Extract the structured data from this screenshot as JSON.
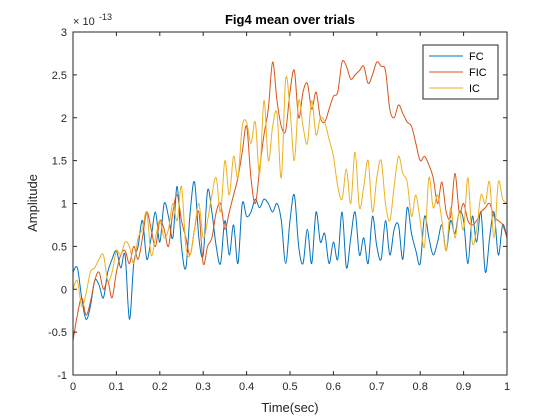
{
  "colors": {
    "axes": "#262626",
    "background": "#ffffff",
    "legend_border": "#262626"
  },
  "chart_data": {
    "type": "line",
    "title": "Fig4 mean over trials",
    "xlabel": "Time(sec)",
    "ylabel": "Amplitude",
    "xlim": [
      0,
      1
    ],
    "ylim": [
      -1,
      3
    ],
    "y_exponent_label": "× 10",
    "y_exponent": "-13",
    "x_ticks": [
      0,
      0.1,
      0.2,
      0.3,
      0.4,
      0.5,
      0.6,
      0.7,
      0.8,
      0.9,
      1
    ],
    "x_tick_labels": [
      "0",
      "0.1",
      "0.2",
      "0.3",
      "0.4",
      "0.5",
      "0.6",
      "0.7",
      "0.8",
      "0.9",
      "1"
    ],
    "y_ticks": [
      -1,
      -0.5,
      0,
      0.5,
      1,
      1.5,
      2,
      2.5,
      3
    ],
    "y_tick_labels": [
      "-1",
      "-0.5",
      "0",
      "0.5",
      "1",
      "1.5",
      "2",
      "2.5",
      "3"
    ],
    "grid": false,
    "legend_position": "top-right",
    "series": [
      {
        "name": "FC",
        "color": "#0072BD",
        "x": [
          0,
          0.01,
          0.02,
          0.03,
          0.04,
          0.05,
          0.06,
          0.07,
          0.08,
          0.09,
          0.1,
          0.11,
          0.12,
          0.13,
          0.14,
          0.15,
          0.16,
          0.17,
          0.18,
          0.19,
          0.2,
          0.21,
          0.22,
          0.23,
          0.24,
          0.25,
          0.26,
          0.27,
          0.28,
          0.29,
          0.3,
          0.31,
          0.32,
          0.33,
          0.34,
          0.35,
          0.36,
          0.37,
          0.38,
          0.39,
          0.4,
          0.41,
          0.42,
          0.43,
          0.44,
          0.45,
          0.46,
          0.47,
          0.48,
          0.49,
          0.5,
          0.51,
          0.52,
          0.53,
          0.54,
          0.55,
          0.56,
          0.57,
          0.58,
          0.59,
          0.6,
          0.61,
          0.62,
          0.63,
          0.64,
          0.65,
          0.66,
          0.67,
          0.68,
          0.69,
          0.7,
          0.71,
          0.72,
          0.73,
          0.74,
          0.75,
          0.76,
          0.77,
          0.78,
          0.79,
          0.8,
          0.81,
          0.82,
          0.83,
          0.84,
          0.85,
          0.86,
          0.87,
          0.88,
          0.89,
          0.9,
          0.91,
          0.92,
          0.93,
          0.94,
          0.95,
          0.96,
          0.97,
          0.98,
          0.99,
          1
        ],
        "values": [
          0.2,
          0.25,
          -0.1,
          -0.35,
          -0.2,
          0.1,
          0.05,
          -0.1,
          0.2,
          0.35,
          0.45,
          0.25,
          0.4,
          -0.35,
          0.3,
          0.5,
          0.8,
          0.35,
          0.6,
          0.9,
          0.55,
          1.0,
          0.85,
          0.6,
          1.2,
          0.5,
          0.25,
          0.9,
          1.25,
          0.6,
          0.4,
          1.15,
          0.9,
          0.5,
          0.3,
          0.8,
          0.4,
          0.75,
          0.3,
          1.0,
          0.85,
          0.9,
          1.05,
          0.95,
          1.05,
          1.0,
          0.9,
          1.0,
          0.8,
          0.3,
          0.8,
          1.1,
          0.5,
          0.3,
          0.7,
          0.3,
          0.9,
          0.55,
          0.65,
          0.3,
          0.55,
          0.35,
          0.9,
          0.25,
          0.6,
          0.9,
          0.4,
          0.6,
          0.3,
          0.85,
          0.5,
          0.35,
          0.8,
          0.4,
          0.7,
          0.75,
          0.35,
          0.95,
          0.65,
          0.45,
          0.3,
          0.85,
          0.6,
          0.4,
          0.55,
          0.75,
          0.45,
          0.8,
          0.65,
          0.9,
          0.8,
          0.3,
          0.85,
          0.55,
          0.9,
          0.2,
          0.6,
          0.9,
          0.4,
          0.75,
          0.6
        ]
      },
      {
        "name": "FIC",
        "color": "#D95319",
        "x": [
          0,
          0.01,
          0.02,
          0.03,
          0.04,
          0.05,
          0.06,
          0.07,
          0.08,
          0.09,
          0.1,
          0.11,
          0.12,
          0.13,
          0.14,
          0.15,
          0.16,
          0.17,
          0.18,
          0.19,
          0.2,
          0.21,
          0.22,
          0.23,
          0.24,
          0.25,
          0.26,
          0.27,
          0.28,
          0.29,
          0.3,
          0.31,
          0.32,
          0.33,
          0.34,
          0.35,
          0.36,
          0.37,
          0.38,
          0.39,
          0.4,
          0.41,
          0.42,
          0.43,
          0.44,
          0.45,
          0.46,
          0.47,
          0.48,
          0.49,
          0.5,
          0.51,
          0.52,
          0.53,
          0.54,
          0.55,
          0.56,
          0.57,
          0.58,
          0.59,
          0.6,
          0.61,
          0.62,
          0.63,
          0.64,
          0.65,
          0.66,
          0.67,
          0.68,
          0.69,
          0.7,
          0.71,
          0.72,
          0.73,
          0.74,
          0.75,
          0.76,
          0.77,
          0.78,
          0.79,
          0.8,
          0.81,
          0.82,
          0.83,
          0.84,
          0.85,
          0.86,
          0.87,
          0.88,
          0.89,
          0.9,
          0.91,
          0.92,
          0.93,
          0.94,
          0.95,
          0.96,
          0.97,
          0.98,
          0.99,
          1
        ],
        "values": [
          -0.6,
          -0.3,
          -0.1,
          -0.3,
          -0.15,
          0.1,
          0.2,
          0.0,
          0.1,
          -0.1,
          0.2,
          0.4,
          0.45,
          0.3,
          0.5,
          0.35,
          0.6,
          0.9,
          0.7,
          0.5,
          0.8,
          0.7,
          0.5,
          0.9,
          1.1,
          0.8,
          0.6,
          0.4,
          0.7,
          0.9,
          0.3,
          0.5,
          0.6,
          0.9,
          1.0,
          0.7,
          0.9,
          1.1,
          1.3,
          1.6,
          1.9,
          1.3,
          1.0,
          1.4,
          1.8,
          2.1,
          2.65,
          2.2,
          1.9,
          1.85,
          2.3,
          2.55,
          2.0,
          2.3,
          2.4,
          2.1,
          2.3,
          2.0,
          1.95,
          2.1,
          2.25,
          2.3,
          2.65,
          2.6,
          2.45,
          2.5,
          2.55,
          2.6,
          2.4,
          2.5,
          2.65,
          2.6,
          2.55,
          2.1,
          2.0,
          2.15,
          2.05,
          1.95,
          1.9,
          1.7,
          1.5,
          1.55,
          1.45,
          1.3,
          1.0,
          1.25,
          0.9,
          0.85,
          1.35,
          0.9,
          1.0,
          0.8,
          0.75,
          0.8,
          0.9,
          0.95,
          1.0,
          0.85,
          0.8,
          0.75,
          0.6
        ]
      },
      {
        "name": "IC",
        "color": "#EDB120",
        "x": [
          0,
          0.01,
          0.02,
          0.03,
          0.04,
          0.05,
          0.06,
          0.07,
          0.08,
          0.09,
          0.1,
          0.11,
          0.12,
          0.13,
          0.14,
          0.15,
          0.16,
          0.17,
          0.18,
          0.19,
          0.2,
          0.21,
          0.22,
          0.23,
          0.24,
          0.25,
          0.26,
          0.27,
          0.28,
          0.29,
          0.3,
          0.31,
          0.32,
          0.33,
          0.34,
          0.35,
          0.36,
          0.37,
          0.38,
          0.39,
          0.4,
          0.41,
          0.42,
          0.43,
          0.44,
          0.45,
          0.46,
          0.47,
          0.48,
          0.49,
          0.5,
          0.51,
          0.52,
          0.53,
          0.54,
          0.55,
          0.56,
          0.57,
          0.58,
          0.59,
          0.6,
          0.61,
          0.62,
          0.63,
          0.64,
          0.65,
          0.66,
          0.67,
          0.68,
          0.69,
          0.7,
          0.71,
          0.72,
          0.73,
          0.74,
          0.75,
          0.76,
          0.77,
          0.78,
          0.79,
          0.8,
          0.81,
          0.82,
          0.83,
          0.84,
          0.85,
          0.86,
          0.87,
          0.88,
          0.89,
          0.9,
          0.91,
          0.92,
          0.93,
          0.94,
          0.95,
          0.96,
          0.97,
          0.98,
          0.99,
          1
        ],
        "values": [
          0.0,
          0.1,
          -0.2,
          -0.05,
          0.2,
          0.25,
          0.35,
          0.4,
          0.1,
          0.2,
          0.45,
          0.4,
          0.55,
          0.5,
          0.3,
          0.6,
          0.7,
          0.9,
          0.4,
          0.6,
          0.8,
          0.6,
          0.7,
          1.0,
          0.8,
          1.2,
          0.5,
          0.4,
          0.7,
          1.0,
          0.6,
          0.8,
          1.1,
          1.3,
          0.9,
          1.5,
          1.1,
          1.55,
          1.3,
          1.9,
          1.95,
          1.7,
          1.95,
          1.35,
          2.2,
          1.5,
          1.9,
          2.05,
          1.3,
          2.45,
          2.1,
          1.5,
          2.2,
          1.9,
          1.7,
          2.2,
          1.8,
          2.0,
          1.95,
          1.75,
          1.55,
          1.2,
          1.05,
          1.4,
          1.0,
          1.6,
          0.95,
          1.2,
          1.5,
          0.9,
          1.3,
          1.5,
          1.0,
          0.8,
          1.2,
          1.55,
          1.35,
          1.25,
          0.85,
          1.1,
          0.8,
          0.5,
          1.3,
          0.95,
          1.1,
          0.8,
          0.45,
          0.95,
          0.6,
          0.9,
          0.7,
          1.3,
          0.55,
          0.7,
          1.1,
          1.0,
          1.25,
          0.6,
          1.25,
          1.05,
          1.0
        ]
      }
    ]
  }
}
